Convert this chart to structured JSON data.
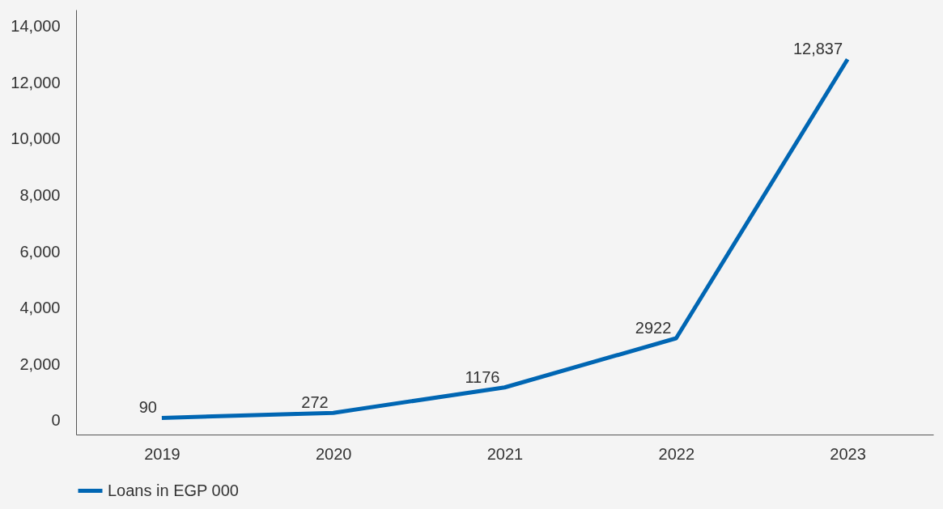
{
  "chart_data": {
    "type": "line",
    "categories": [
      "2019",
      "2020",
      "2021",
      "2022",
      "2023"
    ],
    "series": [
      {
        "name": "Loans in EGP 000",
        "color": "#0066b3",
        "values": [
          90,
          272,
          1176,
          2922,
          12837
        ]
      }
    ],
    "value_labels": [
      "90",
      "272",
      "1176",
      "2922",
      "12,837"
    ],
    "ylim": [
      -500,
      14600
    ],
    "yticks": [
      0,
      {
        "value": 2000,
        "label": "2,000"
      },
      {
        "value": 4000,
        "label": "4,000"
      },
      {
        "value": 6000,
        "label": "6,000"
      },
      {
        "value": 8000,
        "label": "8,000"
      },
      {
        "value": 10000,
        "label": "10,000"
      },
      {
        "value": 12000,
        "label": "12,000"
      },
      {
        "value": 14000,
        "label": "14,000"
      }
    ],
    "grid": false,
    "legend": "bottom",
    "marker": "none",
    "line_style": "solid"
  }
}
